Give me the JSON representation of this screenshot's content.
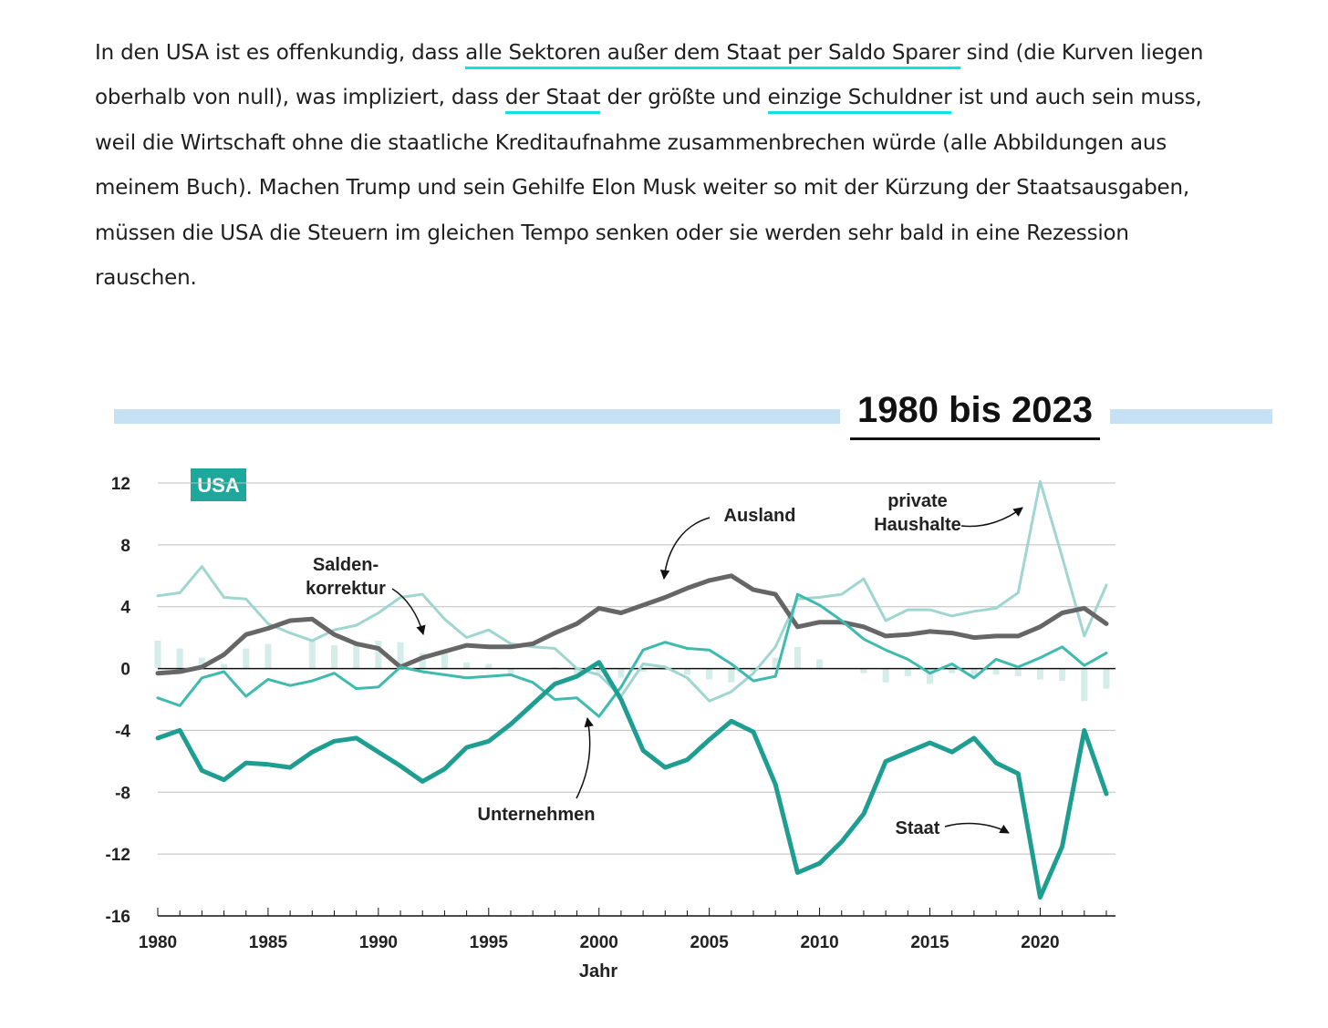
{
  "text": {
    "lines": [
      [
        "In den USA ist es offenkundig, dass ",
        "alle Sektoren außer dem Staat per Saldo Sparer",
        " sind (die Kurven liegen"
      ],
      [
        "oberhalb von null), was impliziert, dass ",
        "der Staat",
        " der größte und ",
        "einzige Schuldner",
        " ist und auch sein muss,"
      ],
      [
        "weil die Wirtschaft ohne die staatliche Kreditaufnahme zusammenbrechen würde (alle Abbildungen aus"
      ],
      [
        "meinem Buch). Machen Trump und sein Gehilfe Elon Musk weiter so mit der Kürzung der Staatsausgaben,"
      ],
      [
        "müssen die USA die Steuern im gleichen Tempo senken oder sie werden sehr bald in eine Rezession"
      ],
      [
        "rauschen."
      ]
    ]
  },
  "chart_data": {
    "type": "line",
    "title": "1980 bis 2023",
    "badge": "USA",
    "xlabel": "Jahr",
    "ylabel": "",
    "xlim": [
      1980,
      2023
    ],
    "ylim": [
      -16,
      12
    ],
    "yticks": [
      12,
      8,
      4,
      0,
      -4,
      -8,
      -12,
      -16
    ],
    "xticks": [
      1980,
      1985,
      1990,
      1995,
      2000,
      2005,
      2010,
      2015,
      2020
    ],
    "x": [
      1980,
      1981,
      1982,
      1983,
      1984,
      1985,
      1986,
      1987,
      1988,
      1989,
      1990,
      1991,
      1992,
      1993,
      1994,
      1995,
      1996,
      1997,
      1998,
      1999,
      2000,
      2001,
      2002,
      2003,
      2004,
      2005,
      2006,
      2007,
      2008,
      2009,
      2010,
      2011,
      2012,
      2013,
      2014,
      2015,
      2016,
      2017,
      2018,
      2019,
      2020,
      2021,
      2022,
      2023
    ],
    "series": [
      {
        "name": "private Haushalte",
        "color": "#9fd6cf",
        "width": 3,
        "values": [
          4.7,
          4.9,
          6.6,
          4.6,
          4.5,
          2.9,
          2.3,
          1.8,
          2.5,
          2.8,
          3.6,
          4.6,
          4.8,
          3.2,
          2.0,
          2.5,
          1.6,
          1.4,
          1.3,
          0,
          -0.4,
          -1.8,
          0.3,
          0.1,
          -0.6,
          -2.1,
          -1.5,
          -0.3,
          1.4,
          4.5,
          4.6,
          4.8,
          5.8,
          3.1,
          3.8,
          3.8,
          3.4,
          3.7,
          3.9,
          4.9,
          12.1,
          7.2,
          2.1,
          5.4
        ]
      },
      {
        "name": "Ausland",
        "color": "#666666",
        "width": 5,
        "values": [
          -0.3,
          -0.2,
          0.1,
          0.9,
          2.2,
          2.6,
          3.1,
          3.2,
          2.2,
          1.6,
          1.3,
          0.1,
          0.7,
          1.1,
          1.5,
          1.4,
          1.4,
          1.6,
          2.3,
          2.9,
          3.9,
          3.6,
          4.1,
          4.6,
          5.2,
          5.7,
          6.0,
          5.1,
          4.8,
          2.7,
          3.0,
          3.0,
          2.7,
          2.1,
          2.2,
          2.4,
          2.3,
          2.0,
          2.1,
          2.1,
          2.7,
          3.6,
          3.9,
          2.9
        ]
      },
      {
        "name": "Unternehmen",
        "color": "#3fbaae",
        "width": 3,
        "values": [
          -1.9,
          -2.4,
          -0.6,
          -0.2,
          -1.8,
          -0.7,
          -1.1,
          -0.8,
          -0.3,
          -1.3,
          -1.2,
          0.1,
          -0.2,
          -0.4,
          -0.6,
          -0.5,
          -0.4,
          -0.9,
          -2.0,
          -1.9,
          -3.1,
          -1.2,
          1.2,
          1.7,
          1.3,
          1.2,
          0.3,
          -0.8,
          -0.5,
          4.8,
          4.1,
          3.1,
          1.9,
          1.2,
          0.6,
          -0.3,
          0.3,
          -0.6,
          0.6,
          0.1,
          0.7,
          1.4,
          0.2,
          1.0
        ]
      },
      {
        "name": "Staat",
        "color": "#1e9e91",
        "width": 5,
        "values": [
          -4.5,
          -4.0,
          -6.6,
          -7.2,
          -6.1,
          -6.2,
          -6.4,
          -5.4,
          -4.7,
          -4.5,
          -5.4,
          -6.3,
          -7.3,
          -6.5,
          -5.1,
          -4.7,
          -3.6,
          -2.3,
          -1.0,
          -0.5,
          0.4,
          -2.0,
          -5.3,
          -6.4,
          -5.9,
          -4.6,
          -3.4,
          -4.1,
          -7.5,
          -13.2,
          -12.6,
          -11.2,
          -9.4,
          -6.0,
          -5.4,
          -4.8,
          -5.4,
          -4.5,
          -6.1,
          -6.8,
          -14.8,
          -11.5,
          -4.0,
          -8.1
        ]
      }
    ],
    "saldenkorrektur_bars": [
      1.8,
      1.3,
      0.7,
      0.3,
      1.3,
      1.6,
      0,
      1.8,
      1.5,
      1.6,
      1.8,
      1.7,
      1.0,
      1.0,
      0.4,
      0.3,
      -0.4,
      0,
      0.1,
      -0.5,
      -0.3,
      -0.6,
      -0.2,
      -0.1,
      -0.4,
      -0.7,
      -0.9,
      -0.2,
      0.7,
      1.4,
      0.6,
      0,
      -0.3,
      -0.9,
      -0.5,
      -1.0,
      -0.3,
      -0.6,
      -0.4,
      -0.5,
      -0.7,
      -0.8,
      -2.1,
      -1.3
    ],
    "bar_color": "#d5ede9",
    "annotations": [
      {
        "lines": [
          "Ausland"
        ]
      },
      {
        "lines": [
          "private",
          "Haushalte"
        ]
      },
      {
        "lines": [
          "Salden-",
          "korrektur"
        ]
      },
      {
        "lines": [
          "Unternehmen"
        ]
      },
      {
        "lines": [
          "Staat"
        ]
      }
    ],
    "grid": true,
    "accent": "#c6e1f3"
  }
}
